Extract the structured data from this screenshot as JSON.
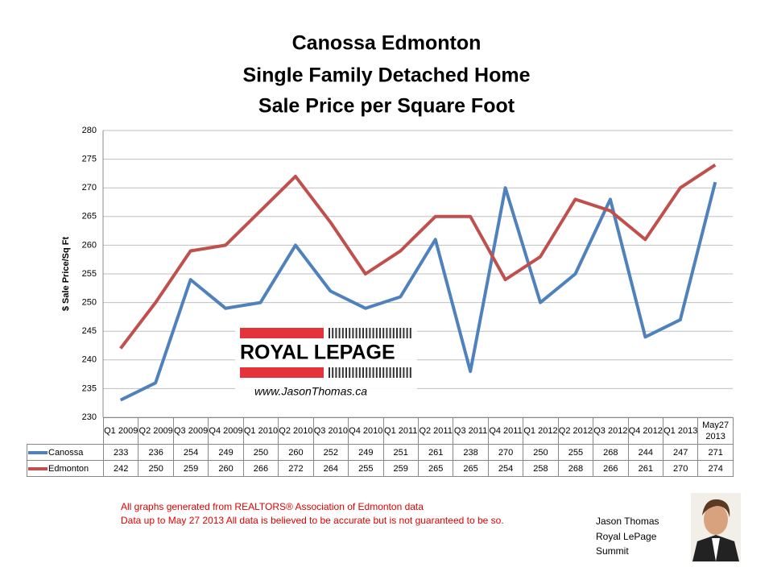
{
  "chart_data": {
    "type": "line",
    "title": [
      "Canossa Edmonton",
      "Single Family Detached Home",
      "Sale Price per Square Foot"
    ],
    "y_label": "$ Sale Price/Sq Ft",
    "categories": [
      "Q1 2009",
      "Q2 2009",
      "Q3 2009",
      "Q4 2009",
      "Q1 2010",
      "Q2 2010",
      "Q3 2010",
      "Q4 2010",
      "Q1 2011",
      "Q2 2011",
      "Q3 2011",
      "Q4 2011",
      "Q1 2012",
      "Q2 2012",
      "Q3 2012",
      "Q4 2012",
      "Q1 2013",
      "May27 2013"
    ],
    "series": [
      {
        "name": "Canossa",
        "color": "#4f81bd",
        "values": [
          233,
          236,
          254,
          249,
          250,
          260,
          252,
          249,
          251,
          261,
          238,
          270,
          250,
          255,
          268,
          244,
          247,
          271
        ]
      },
      {
        "name": "Edmonton",
        "color": "#c0504d",
        "values": [
          242,
          250,
          259,
          260,
          266,
          272,
          264,
          255,
          259,
          265,
          265,
          254,
          258,
          268,
          266,
          261,
          270,
          274
        ]
      }
    ],
    "ylim": [
      230,
      280
    ],
    "yticks": [
      230,
      235,
      240,
      245,
      250,
      255,
      260,
      265,
      270,
      275,
      280
    ],
    "grid": true
  },
  "logo": {
    "text": "ROYAL LEPAGE",
    "url": "www.JasonThomas.ca"
  },
  "footer": [
    "All graphs generated from REALTORS® Association of Edmonton data",
    "Data up to  May 27 2013  All data is believed to be accurate but is not guaranteed to be so."
  ],
  "agent": [
    "Jason Thomas",
    "Royal LePage",
    "Summit"
  ]
}
